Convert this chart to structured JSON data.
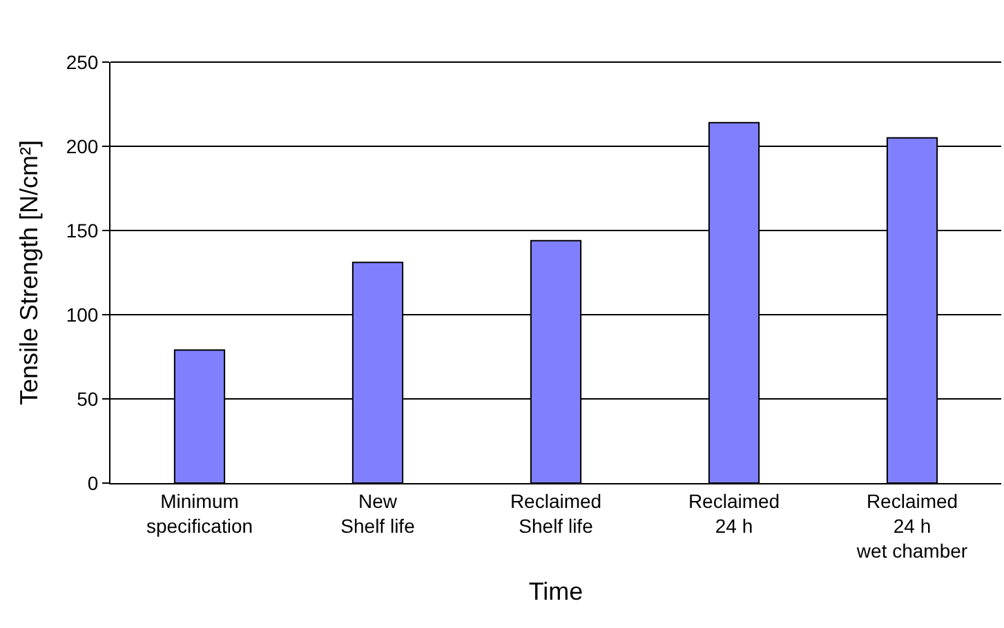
{
  "chart_data": {
    "type": "bar",
    "xlabel": "Time",
    "ylabel": "Tensile Strength [N/cm²]",
    "categories": [
      "Minimum\nspecification",
      "New\nShelf life",
      "Reclaimed\nShelf life",
      "Reclaimed\n24 h",
      "Reclaimed\n24 h\nwet chamber"
    ],
    "values": [
      79,
      131,
      144,
      214,
      205
    ],
    "color": "#8080ff",
    "ylim": [
      0,
      250
    ],
    "yticks": [
      0,
      50,
      100,
      150,
      200,
      250
    ],
    "grid": "y",
    "legend": false
  }
}
